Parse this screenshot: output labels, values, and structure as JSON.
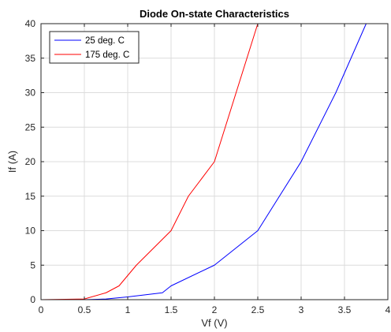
{
  "chart_data": {
    "type": "line",
    "title": "Diode On-state Characteristics",
    "xlabel": "Vf (V)",
    "ylabel": "If (A)",
    "xlim": [
      0,
      4
    ],
    "ylim": [
      0,
      40
    ],
    "xticks": [
      "0",
      "0.5",
      "1",
      "1.5",
      "2",
      "2.5",
      "3",
      "3.5",
      "4"
    ],
    "yticks": [
      "0",
      "5",
      "10",
      "15",
      "20",
      "25",
      "30",
      "35",
      "40"
    ],
    "grid": true,
    "legend_position": "top-left",
    "series": [
      {
        "name": "25 deg. C",
        "color": "#0000ff",
        "x": [
          0,
          0.5,
          0.75,
          1.0,
          1.4,
          1.5,
          2.0,
          2.5,
          3.0,
          3.4,
          3.75
        ],
        "y": [
          0,
          0,
          0.1,
          0.4,
          1.0,
          2.0,
          5.0,
          10.0,
          20.0,
          30.0,
          40.0
        ]
      },
      {
        "name": "175 deg. C",
        "color": "#ff0000",
        "x": [
          0,
          0.5,
          0.75,
          0.9,
          1.1,
          1.5,
          1.7,
          2.0,
          2.5
        ],
        "y": [
          0,
          0.1,
          1.0,
          2.0,
          5.0,
          10.0,
          15.0,
          20.0,
          40.0
        ]
      }
    ]
  }
}
